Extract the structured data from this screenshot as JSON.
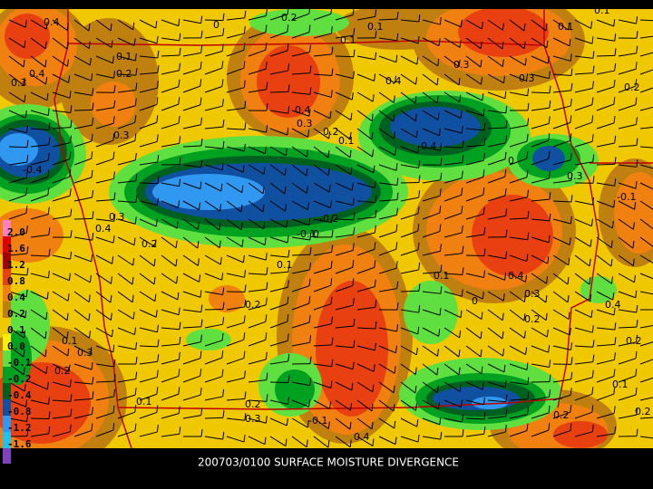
{
  "caption": "200703/0100 SURFACE MOISTURE DIVERGENCE",
  "color_scale": {
    "labels": [
      "2.0",
      "1.6",
      "1.2",
      "0.8",
      "0.4",
      "0.2",
      "0.1",
      "0.0",
      "-0.1",
      "-0.2",
      "-0.4",
      "-0.8",
      "-1.2",
      "-1.6"
    ]
  },
  "contour_labels": [
    "0.4",
    "0",
    "0.2",
    "0.1",
    "0.1",
    "0.1",
    "0.1",
    "0.2",
    "0.3",
    "0.4",
    "0.3",
    "0.4",
    "0.3",
    "0.2",
    "0.1",
    "0.4",
    "0.2",
    "-0.4",
    "0.1",
    "0.3",
    "0.3",
    "-0.4",
    "-0.2",
    "-0.1",
    "0",
    "0.4",
    "0.3",
    "0.2",
    "0.1",
    "0",
    "0.2",
    "0.3",
    "0.4",
    "0.3",
    "0.2",
    "0.1",
    "-0.1",
    "0.2",
    "0.4",
    "0.3",
    "0.2",
    "0.1",
    "0",
    "0.2",
    "0.3",
    "-0.1",
    "0.1",
    "0.2",
    "0.1",
    "0.2",
    "0.4"
  ]
}
